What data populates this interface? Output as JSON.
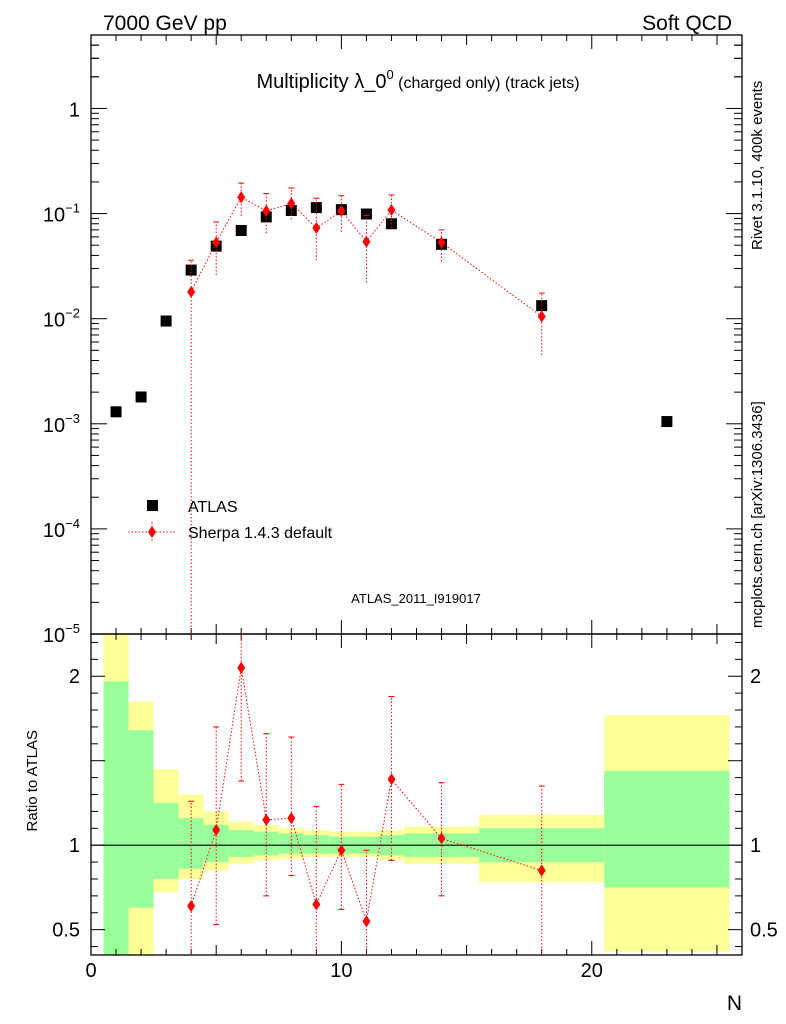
{
  "header": {
    "left": "7000 GeV pp",
    "right": "Soft QCD"
  },
  "side_labels": {
    "rivet": "Rivet 3.1.10,  400k events",
    "source": "mcplots.cern.ch [arXiv:1306.3436]"
  },
  "chart_data": [
    {
      "type": "scatter",
      "title_main": "Multiplicity λ_0",
      "title_sup": "0",
      "title_rest": " (charged only) (track jets)",
      "watermark": "ATLAS_2011_I919017",
      "yscale": "log",
      "xlim": [
        0,
        26
      ],
      "ylim": [
        1e-05,
        5
      ],
      "yticks": [
        {
          "v": 1,
          "base": "1",
          "exp": ""
        },
        {
          "v": 0.1,
          "base": "10",
          "exp": "−1"
        },
        {
          "v": 0.01,
          "base": "10",
          "exp": "−2"
        },
        {
          "v": 0.001,
          "base": "10",
          "exp": "−3"
        },
        {
          "v": 0.0001,
          "base": "10",
          "exp": "−4"
        },
        {
          "v": 1e-05,
          "base": "10",
          "exp": "−5"
        }
      ],
      "legend": [
        {
          "name": "ATLAS",
          "marker": "square",
          "color": "#000000"
        },
        {
          "name": "Sherpa 1.4.3 default",
          "marker": "diamond",
          "color": "#ff0000"
        }
      ],
      "series": [
        {
          "name": "ATLAS",
          "color": "#000000",
          "points": [
            {
              "x": 1,
              "y": 0.0013
            },
            {
              "x": 2,
              "y": 0.0018
            },
            {
              "x": 3,
              "y": 0.0095
            },
            {
              "x": 4,
              "y": 0.029
            },
            {
              "x": 5,
              "y": 0.049
            },
            {
              "x": 6,
              "y": 0.069
            },
            {
              "x": 7,
              "y": 0.093
            },
            {
              "x": 8,
              "y": 0.107
            },
            {
              "x": 9,
              "y": 0.114
            },
            {
              "x": 10,
              "y": 0.109
            },
            {
              "x": 11,
              "y": 0.099
            },
            {
              "x": 12,
              "y": 0.08
            },
            {
              "x": 14,
              "y": 0.051
            },
            {
              "x": 18,
              "y": 0.0133
            },
            {
              "x": 23,
              "y": 0.00105
            }
          ]
        },
        {
          "name": "Sherpa 1.4.3 default",
          "color": "#ff0000",
          "points": [
            {
              "x": 4,
              "y": 0.018,
              "ylo": 1e-06,
              "yhi": 0.036
            },
            {
              "x": 5,
              "y": 0.053,
              "ylo": 0.026,
              "yhi": 0.083
            },
            {
              "x": 6,
              "y": 0.143,
              "ylo": 0.095,
              "yhi": 0.195
            },
            {
              "x": 7,
              "y": 0.106,
              "ylo": 0.065,
              "yhi": 0.155
            },
            {
              "x": 8,
              "y": 0.125,
              "ylo": 0.088,
              "yhi": 0.175
            },
            {
              "x": 9,
              "y": 0.073,
              "ylo": 0.036,
              "yhi": 0.14
            },
            {
              "x": 10,
              "y": 0.106,
              "ylo": 0.067,
              "yhi": 0.148
            },
            {
              "x": 11,
              "y": 0.054,
              "ylo": 0.022,
              "yhi": 0.096
            },
            {
              "x": 12,
              "y": 0.108,
              "ylo": 0.073,
              "yhi": 0.15
            },
            {
              "x": 14,
              "y": 0.053,
              "ylo": 0.035,
              "yhi": 0.07
            },
            {
              "x": 18,
              "y": 0.0105,
              "ylo": 0.0045,
              "yhi": 0.0175
            }
          ]
        }
      ]
    },
    {
      "type": "scatter",
      "ylabel": "Ratio to ATLAS",
      "xlabel": "N",
      "xlim": [
        0,
        26
      ],
      "ylim": [
        0.35,
        2.25
      ],
      "xticks": [
        0,
        10,
        20
      ],
      "yticks": [
        {
          "v": 0.5,
          "label": "0.5"
        },
        {
          "v": 1,
          "label": "1"
        },
        {
          "v": 2,
          "label": "2"
        }
      ],
      "bands": [
        {
          "x0": 0.5,
          "x1": 1.5,
          "y_lo": 0.35,
          "y_hi": 2.25,
          "g_lo": 0.35,
          "g_hi": 1.97
        },
        {
          "x0": 1.5,
          "x1": 2.5,
          "y_lo": 0.35,
          "y_hi": 1.85,
          "g_lo": 0.63,
          "g_hi": 1.68
        },
        {
          "x0": 2.5,
          "x1": 3.5,
          "y_lo": 0.72,
          "y_hi": 1.45,
          "g_lo": 0.8,
          "g_hi": 1.25
        },
        {
          "x0": 3.5,
          "x1": 4.5,
          "y_lo": 0.8,
          "y_hi": 1.3,
          "g_lo": 0.86,
          "g_hi": 1.16
        },
        {
          "x0": 4.5,
          "x1": 5.5,
          "y_lo": 0.85,
          "y_hi": 1.2,
          "g_lo": 0.9,
          "g_hi": 1.12
        },
        {
          "x0": 5.5,
          "x1": 6.5,
          "y_lo": 0.89,
          "y_hi": 1.14,
          "g_lo": 0.93,
          "g_hi": 1.09
        },
        {
          "x0": 6.5,
          "x1": 7.5,
          "y_lo": 0.91,
          "y_hi": 1.12,
          "g_lo": 0.94,
          "g_hi": 1.08
        },
        {
          "x0": 7.5,
          "x1": 8.5,
          "y_lo": 0.92,
          "y_hi": 1.1,
          "g_lo": 0.95,
          "g_hi": 1.07
        },
        {
          "x0": 8.5,
          "x1": 9.5,
          "y_lo": 0.93,
          "y_hi": 1.09,
          "g_lo": 0.95,
          "g_hi": 1.06
        },
        {
          "x0": 9.5,
          "x1": 10.5,
          "y_lo": 0.93,
          "y_hi": 1.08,
          "g_lo": 0.95,
          "g_hi": 1.05
        },
        {
          "x0": 10.5,
          "x1": 11.5,
          "y_lo": 0.93,
          "y_hi": 1.08,
          "g_lo": 0.95,
          "g_hi": 1.05
        },
        {
          "x0": 11.5,
          "x1": 12.5,
          "y_lo": 0.91,
          "y_hi": 1.09,
          "g_lo": 0.94,
          "g_hi": 1.06
        },
        {
          "x0": 12.5,
          "x1": 15.5,
          "y_lo": 0.89,
          "y_hi": 1.11,
          "g_lo": 0.93,
          "g_hi": 1.07
        },
        {
          "x0": 15.5,
          "x1": 20.5,
          "y_lo": 0.78,
          "y_hi": 1.18,
          "g_lo": 0.9,
          "g_hi": 1.1
        },
        {
          "x0": 20.5,
          "x1": 25.5,
          "y_lo": 0.37,
          "y_hi": 1.77,
          "g_lo": 0.75,
          "g_hi": 1.44
        }
      ],
      "series": [
        {
          "name": "Sherpa 1.4.3 default",
          "color": "#ff0000",
          "points": [
            {
              "x": 4,
              "y": 0.64,
              "ylo": 0.35,
              "yhi": 1.26
            },
            {
              "x": 5,
              "y": 1.09,
              "ylo": 0.53,
              "yhi": 1.7
            },
            {
              "x": 6,
              "y": 2.05,
              "ylo": 1.38,
              "yhi": 2.25
            },
            {
              "x": 7,
              "y": 1.15,
              "ylo": 0.7,
              "yhi": 1.66
            },
            {
              "x": 8,
              "y": 1.16,
              "ylo": 0.82,
              "yhi": 1.64
            },
            {
              "x": 9,
              "y": 0.65,
              "ylo": 0.35,
              "yhi": 1.23
            },
            {
              "x": 10,
              "y": 0.97,
              "ylo": 0.62,
              "yhi": 1.36
            },
            {
              "x": 11,
              "y": 0.55,
              "ylo": 0.35,
              "yhi": 0.97
            },
            {
              "x": 12,
              "y": 1.39,
              "ylo": 0.91,
              "yhi": 1.88
            },
            {
              "x": 14,
              "y": 1.04,
              "ylo": 0.7,
              "yhi": 1.37
            },
            {
              "x": 18,
              "y": 0.85,
              "ylo": 0.35,
              "yhi": 1.35
            }
          ]
        }
      ]
    }
  ]
}
